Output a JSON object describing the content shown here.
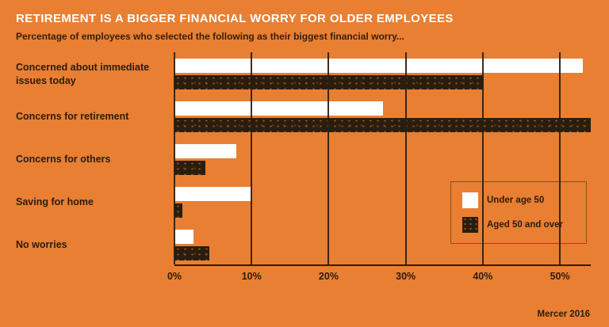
{
  "header": {
    "title": "RETIREMENT IS A BIGGER FINANCIAL WORRY FOR OLDER EMPLOYEES",
    "subtitle": "Percentage of employees who selected the following as their biggest financial worry..."
  },
  "source": "Mercer 2016",
  "colors": {
    "background": "#E87F33",
    "bar_under_50": "#FFFFFF",
    "bar_aged_50_over": "#2B1D0E",
    "text_dark": "#2B1D0E",
    "text_light": "#FFFFFF"
  },
  "chart_data": {
    "type": "bar",
    "orientation": "horizontal",
    "title": "RETIREMENT IS A BIGGER FINANCIAL WORRY FOR OLDER EMPLOYEES",
    "subtitle": "Percentage of employees who selected the following as their biggest financial worry...",
    "categories": [
      "Concerned about immediate issues today",
      "Concerns for retirement",
      "Concerns for others",
      "Saving for home",
      "No worries"
    ],
    "series": [
      {
        "name": "Under age 50",
        "color": "#FFFFFF",
        "values": [
          53,
          27,
          8,
          10,
          2.5
        ]
      },
      {
        "name": "Aged 50 and over",
        "color": "#2B1D0E",
        "values": [
          40,
          54,
          4,
          1,
          4.5
        ]
      }
    ],
    "xlabel": "",
    "ylabel": "",
    "x_ticks": [
      "0%",
      "10%",
      "20%",
      "30%",
      "40%",
      "50%"
    ],
    "x_tick_values": [
      0,
      10,
      20,
      30,
      40,
      50
    ],
    "xlim": [
      0,
      54
    ],
    "grid": "vertical",
    "legend_position": "right-middle"
  }
}
